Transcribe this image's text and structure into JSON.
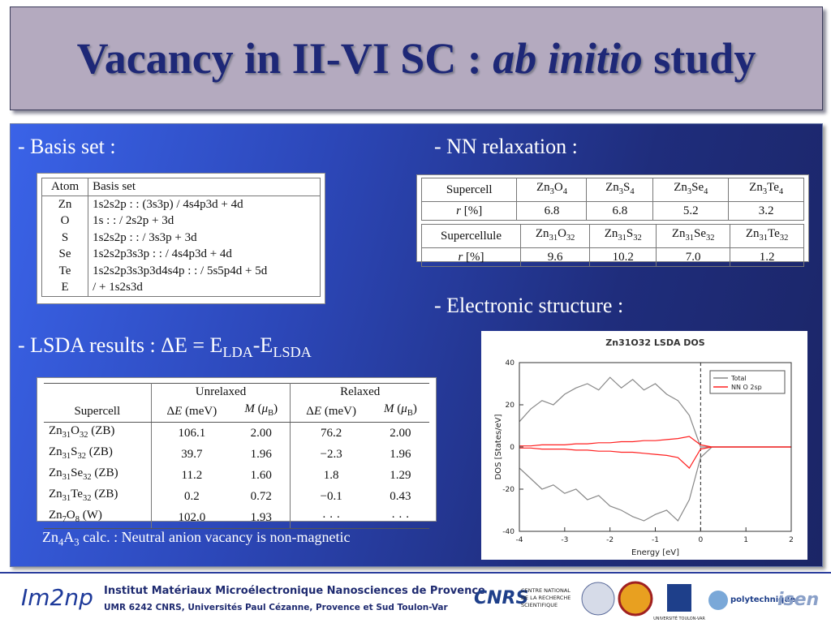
{
  "title": [
    "Vacancy in II-VI SC : ",
    {
      "i": "ab initio"
    },
    " study"
  ],
  "basis_label": "- Basis set :",
  "basis_table": {
    "header": [
      "Atom",
      "Basis set"
    ],
    "rows": [
      [
        "Zn",
        "1s2s2p : : (3s3p) / 4s4p3d + 4d"
      ],
      [
        "O",
        "1s : : / 2s2p + 3d"
      ],
      [
        "S",
        "1s2s2p : : / 3s3p + 3d"
      ],
      [
        "Se",
        "1s2s2p3s3p : : / 4s4p3d + 4d"
      ],
      [
        "Te",
        "1s2s2p3s3p3d4s4p : : / 5s5p4d + 5d"
      ],
      [
        "E",
        "/ + 1s2s3d"
      ]
    ]
  },
  "nn_label": "- NN relaxation :",
  "nn_tables": [
    {
      "header": [
        "Supercell",
        [
          "Zn",
          {
            "sub": "3"
          },
          "O",
          {
            "sub": "4"
          }
        ],
        [
          "Zn",
          {
            "sub": "3"
          },
          "S",
          {
            "sub": "4"
          }
        ],
        [
          "Zn",
          {
            "sub": "3"
          },
          "Se",
          {
            "sub": "4"
          }
        ],
        [
          "Zn",
          {
            "sub": "3"
          },
          "Te",
          {
            "sub": "4"
          }
        ]
      ],
      "row": [
        [
          {
            "i": "r"
          },
          " [%]"
        ],
        "6.8",
        "6.8",
        "5.2",
        "3.2"
      ]
    },
    {
      "header": [
        "Supercellule",
        [
          "Zn",
          {
            "sub": "31"
          },
          "O",
          {
            "sub": "32"
          }
        ],
        [
          "Zn",
          {
            "sub": "31"
          },
          "S",
          {
            "sub": "32"
          }
        ],
        [
          "Zn",
          {
            "sub": "31"
          },
          "Se",
          {
            "sub": "32"
          }
        ],
        [
          "Zn",
          {
            "sub": "31"
          },
          "Te",
          {
            "sub": "32"
          }
        ]
      ],
      "row": [
        [
          {
            "i": "r"
          },
          " [%]"
        ],
        "9.6",
        "10.2",
        "7.0",
        "1.2"
      ]
    }
  ],
  "electronic_label": "- Electronic structure :",
  "lsda_label": [
    "- LSDA results : ΔE = E",
    {
      "sub": "LDA"
    },
    "-E",
    {
      "sub": "LSDA"
    }
  ],
  "lsda_table": {
    "groups": [
      "Unrelaxed",
      "Relaxed"
    ],
    "columns": [
      "Supercell",
      [
        "Δ",
        {
          "i": "E"
        },
        " (meV)"
      ],
      [
        {
          "i": "M"
        },
        " (",
        {
          "i": "μ"
        },
        {
          "sub": "B"
        },
        ")"
      ],
      [
        "Δ",
        {
          "i": "E"
        },
        " (meV)"
      ],
      [
        {
          "i": "M"
        },
        " (",
        {
          "i": "μ"
        },
        {
          "sub": "B"
        },
        ")"
      ]
    ],
    "rows": [
      [
        [
          "Zn",
          {
            "sub": "31"
          },
          "O",
          {
            "sub": "32"
          },
          " (ZB)"
        ],
        "106.1",
        "2.00",
        "76.2",
        "2.00"
      ],
      [
        [
          "Zn",
          {
            "sub": "31"
          },
          "S",
          {
            "sub": "32"
          },
          " (ZB)"
        ],
        "39.7",
        "1.96",
        "−2.3",
        "1.96"
      ],
      [
        [
          "Zn",
          {
            "sub": "31"
          },
          "Se",
          {
            "sub": "32"
          },
          " (ZB)"
        ],
        "11.2",
        "1.60",
        "1.8",
        "1.29"
      ],
      [
        [
          "Zn",
          {
            "sub": "31"
          },
          "Te",
          {
            "sub": "32"
          },
          " (ZB)"
        ],
        "0.2",
        "0.72",
        "−0.1",
        "0.43"
      ],
      [
        [
          "Zn",
          {
            "sub": "7"
          },
          "O",
          {
            "sub": "8"
          },
          " (W)"
        ],
        "102.0",
        "1.93",
        "· · ·",
        "· · ·"
      ]
    ]
  },
  "note": [
    "Zn",
    {
      "sub": "4"
    },
    "A",
    {
      "sub": "3"
    },
    " calc. : Neutral anion vacancy is non-magnetic"
  ],
  "chart_data": {
    "type": "line",
    "title": "Zn31O32 LSDA DOS",
    "xlabel": "Energy [eV]",
    "ylabel": "DOS [States/eV]",
    "x": [
      -4,
      -3.75,
      -3.5,
      -3.25,
      -3,
      -2.75,
      -2.5,
      -2.25,
      -2,
      -1.75,
      -1.5,
      -1.25,
      -1,
      -0.75,
      -0.5,
      -0.25,
      0,
      0.25,
      0.5,
      0.75,
      1,
      1.25,
      1.5,
      1.75,
      2
    ],
    "series": [
      {
        "name": "Total",
        "color": "#888888",
        "values": [
          12,
          18,
          22,
          20,
          25,
          28,
          30,
          27,
          33,
          28,
          32,
          27,
          30,
          25,
          22,
          15,
          0,
          0,
          0,
          0,
          0,
          0,
          0,
          0,
          0
        ],
        "down": [
          -10,
          -15,
          -20,
          -18,
          -22,
          -20,
          -25,
          -23,
          -28,
          -30,
          -33,
          -35,
          -32,
          -30,
          -35,
          -25,
          -5,
          0,
          0,
          0,
          0,
          0,
          0,
          0,
          0
        ]
      },
      {
        "name": "NN O 2sp",
        "color": "#ff2020",
        "values": [
          0.5,
          0.5,
          1,
          1,
          1,
          1.5,
          1.5,
          2,
          2,
          2.5,
          2.5,
          3,
          3,
          3.5,
          4,
          5,
          1,
          0,
          0,
          0,
          0,
          0,
          0,
          0,
          0
        ],
        "down": [
          -0.5,
          -0.5,
          -1,
          -1,
          -1,
          -1.5,
          -1.5,
          -2,
          -2,
          -2.5,
          -2.5,
          -3,
          -3.5,
          -4,
          -5,
          -10,
          -1,
          0,
          0,
          0,
          0,
          0,
          0,
          0,
          0
        ]
      }
    ],
    "fermi_level": 0,
    "xlim": [
      -4,
      2
    ],
    "ylim": [
      -40,
      40
    ],
    "xticks": [
      -4,
      -3,
      -2,
      -1,
      0,
      1,
      2
    ],
    "yticks": [
      -40,
      -20,
      0,
      20,
      40
    ],
    "legend": "upper right"
  },
  "footer": {
    "logo": "Im2np",
    "institute": "Institut Matériaux Microélectronique Nanosciences de Provence",
    "affiliation": "UMR 6242 CNRS, Universités Paul Cézanne, Provence et Sud Toulon-Var",
    "cnrs": "CNRS",
    "cnrs_text": [
      "CENTRE NATIONAL",
      "DE LA RECHERCHE",
      "SCIENTIFIQUE"
    ],
    "toulon": "UNIVERSITÉ TOULON-VAR",
    "polytech": "polytechnique",
    "isen": "isen"
  }
}
